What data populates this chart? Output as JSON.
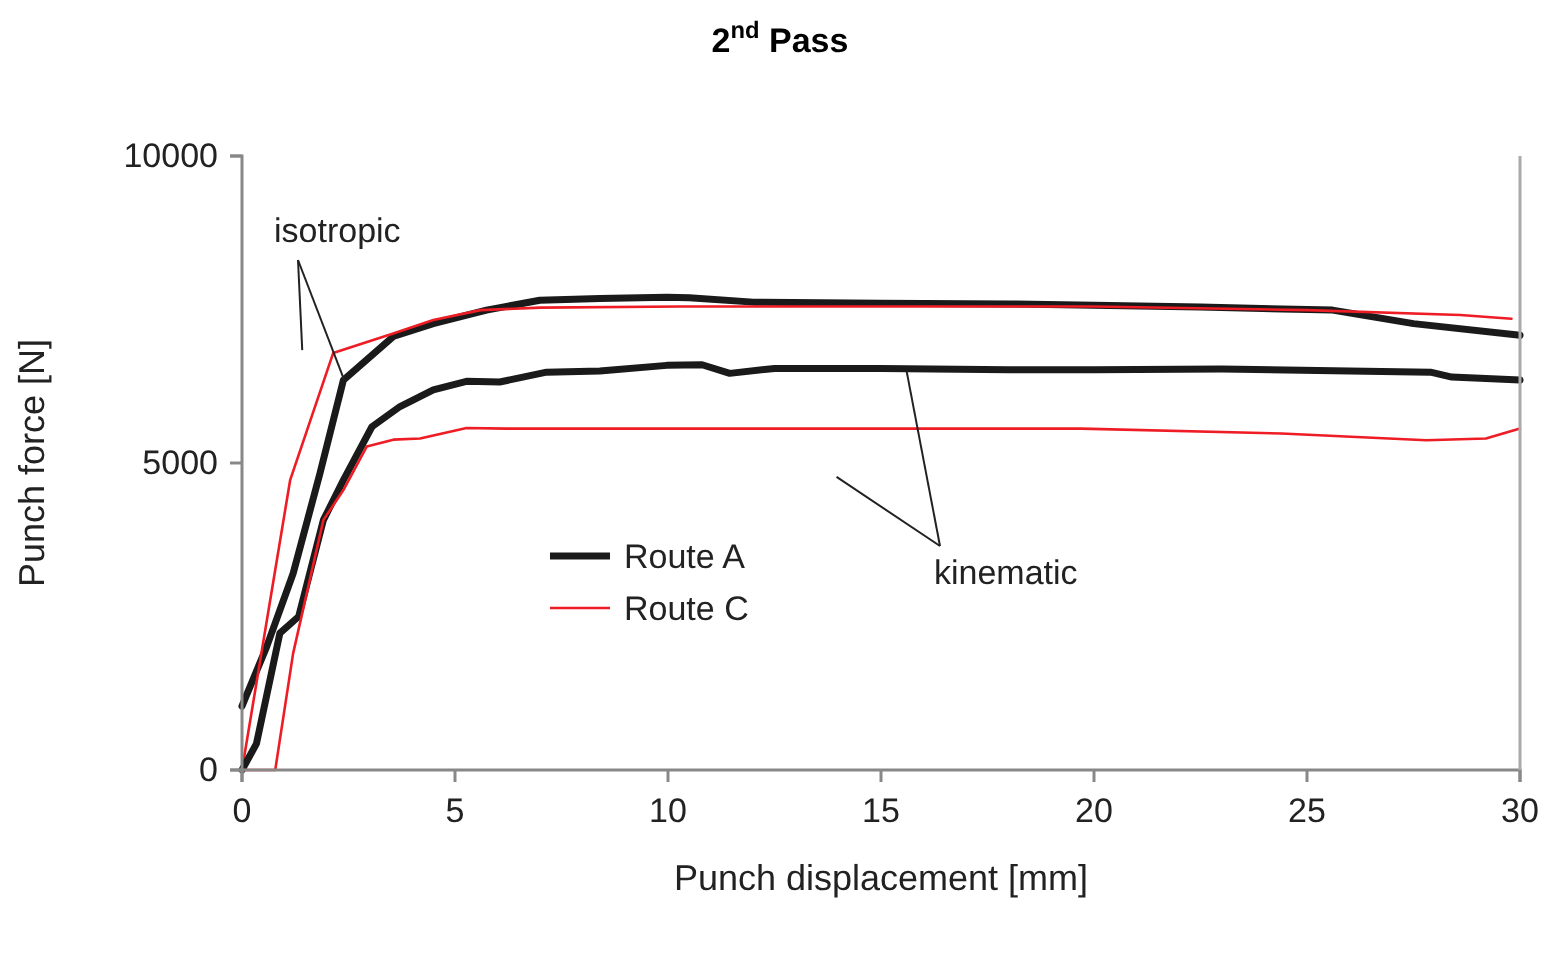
{
  "chart_data": {
    "type": "line",
    "title": "2$^{nd}$ Pass",
    "xlabel": "Punch displacement [mm]",
    "ylabel": "Punch force [N]",
    "xlim": [
      0,
      30
    ],
    "xticks": [
      0,
      5,
      10,
      15,
      20,
      25,
      30
    ],
    "ylim": [
      0,
      10000
    ],
    "yticks": [
      0,
      5000,
      10000
    ],
    "grid": false,
    "legend": "left",
    "marker": "none",
    "line_style": "solid",
    "annotations": [
      {
        "text": "isotropic",
        "x": 2.4,
        "y": 6350
      },
      {
        "text": "kinematic",
        "x": 15.6,
        "y": 6500
      }
    ],
    "series": [
      {
        "name": "Route A",
        "color": "#1a1a1a",
        "x": [
          0,
          0.58,
          1.2,
          1.83,
          2.38,
          3.55,
          4.49,
          5.74,
          6.99,
          8.4,
          9.97,
          10.5,
          12,
          15,
          18,
          20,
          22.5,
          25.6,
          27.5,
          30
        ],
        "values": [
          1040,
          2010,
          3200,
          4830,
          6350,
          7060,
          7270,
          7490,
          7650,
          7680,
          7700,
          7690,
          7620,
          7600,
          7590,
          7570,
          7540,
          7490,
          7270,
          7080
        ]
      },
      {
        "name": "Route C",
        "color": "#ee1c24",
        "x": [
          0,
          1.13,
          2.14,
          3.55,
          4.49,
          5.6,
          7,
          10.3,
          15,
          20,
          25,
          28.6,
          29.8
        ],
        "values": [
          0,
          4720,
          6790,
          7110,
          7330,
          7490,
          7530,
          7550,
          7550,
          7550,
          7490,
          7410,
          7350
        ]
      },
      {
        "color": "#1a1a1a",
        "x": [
          0,
          0.34,
          0.89,
          1.33,
          1.91,
          2.38,
          3.05,
          3.71,
          4.49,
          5.27,
          6.05,
          7.15,
          8.4,
          9.97,
          10.8,
          11.45,
          12.5,
          15,
          18,
          20,
          23,
          26,
          27.9,
          28.4,
          30
        ],
        "values": [
          0,
          430,
          2230,
          2500,
          4070,
          4720,
          5590,
          5920,
          6190,
          6330,
          6320,
          6480,
          6500,
          6590,
          6600,
          6460,
          6540,
          6540,
          6520,
          6520,
          6530,
          6500,
          6480,
          6400,
          6350
        ]
      },
      {
        "color": "#ee1c24",
        "x": [
          0,
          0.78,
          1.2,
          1.91,
          2.38,
          2.93,
          3.55,
          4.18,
          5.27,
          6.2,
          9.97,
          15,
          19.7,
          24.4,
          27.8,
          29.2,
          30
        ],
        "values": [
          0,
          0,
          1900,
          4070,
          4560,
          5270,
          5380,
          5400,
          5570,
          5560,
          5560,
          5560,
          5560,
          5480,
          5370,
          5400,
          5560
        ]
      }
    ]
  }
}
